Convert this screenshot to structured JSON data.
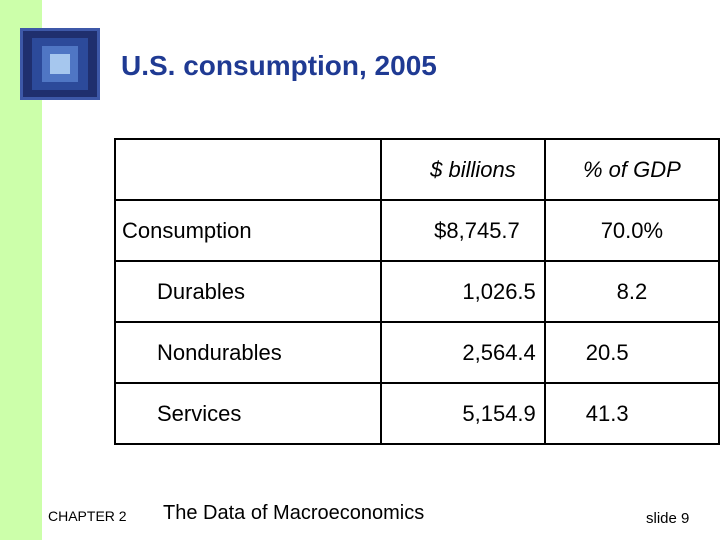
{
  "slide": {
    "title": "U.S. consumption, 2005"
  },
  "table": {
    "headers": [
      "",
      "$ billions",
      "% of GDP"
    ],
    "rows": [
      {
        "label": "Consumption",
        "billions": "$8,745.7",
        "pct_gdp": "70.0%"
      },
      {
        "label": "Durables",
        "billions": "1,026.5",
        "pct_gdp": "8.2"
      },
      {
        "label": "Nondurables",
        "billions": "2,564.4",
        "pct_gdp": "20.5"
      },
      {
        "label": "Services",
        "billions": "5,154.9",
        "pct_gdp": "41.3"
      }
    ]
  },
  "footer": {
    "chapter": "CHAPTER 2",
    "book_title": "The Data of Macroeconomics",
    "slide_number": "slide 9"
  },
  "colors": {
    "title": "#1f3a93",
    "left_bar": "#ccffaa",
    "logo": "#1f2f6e"
  }
}
